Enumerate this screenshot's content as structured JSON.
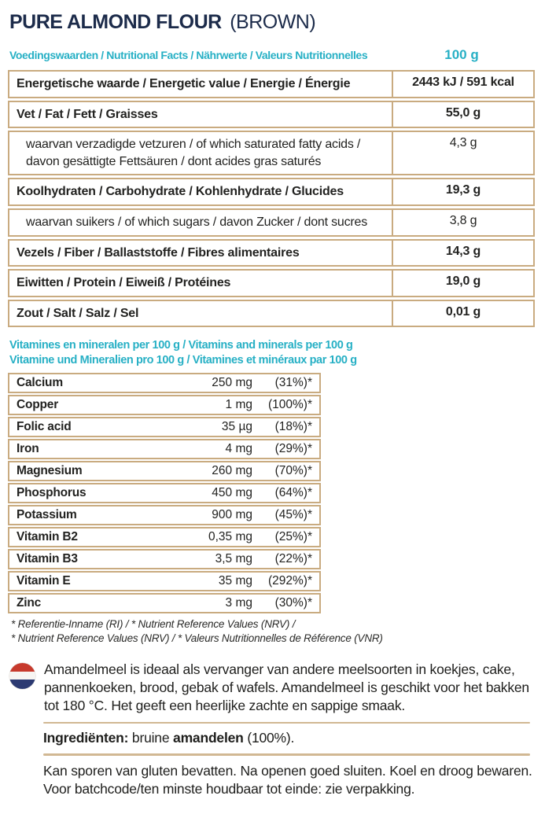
{
  "title": {
    "main": "PURE ALMOND FLOUR",
    "variant": "(BROWN)"
  },
  "facts_header": {
    "label": "Voedingswaarden / Nutritional Facts / Nährwerte / Valeurs Nutritionnelles",
    "amount": "100 g"
  },
  "nutrition_rows": [
    {
      "label": "Energetische waarde / Energetic value / Energie / Énergie",
      "value": "2443 kJ / 591 kcal",
      "bold": true,
      "sub": false
    },
    {
      "label": "Vet / Fat / Fett / Graisses",
      "value": "55,0 g",
      "bold": true,
      "sub": false
    },
    {
      "label": "waarvan verzadigde vetzuren / of which saturated fatty acids / davon gesättigte Fettsäuren / dont acides gras saturés",
      "value": "4,3 g",
      "bold": false,
      "sub": true
    },
    {
      "label": "Koolhydraten / Carbohydrate / Kohlenhydrate / Glucides",
      "value": "19,3 g",
      "bold": true,
      "sub": false
    },
    {
      "label": "waarvan suikers / of which sugars / davon Zucker / dont sucres",
      "value": "3,8 g",
      "bold": false,
      "sub": true
    },
    {
      "label": "Vezels / Fiber / Ballaststoffe / Fibres alimentaires",
      "value": "14,3 g",
      "bold": true,
      "sub": false
    },
    {
      "label": "Eiwitten / Protein / Eiweiß / Protéines",
      "value": "19,0 g",
      "bold": true,
      "sub": false
    },
    {
      "label": "Zout / Salt / Salz / Sel",
      "value": "0,01 g",
      "bold": true,
      "sub": false
    }
  ],
  "vitamins_header": {
    "line1": "Vitamines en mineralen per 100 g / Vitamins and minerals per 100 g",
    "line2": "Vitamine und Mineralien pro 100 g / Vitamines et minéraux par 100 g"
  },
  "vitamins": [
    {
      "name": "Calcium",
      "amount": "250 mg",
      "nrv": "(31%)*"
    },
    {
      "name": "Copper",
      "amount": "1 mg",
      "nrv": "(100%)*"
    },
    {
      "name": "Folic acid",
      "amount": "35 µg",
      "nrv": "(18%)*"
    },
    {
      "name": "Iron",
      "amount": "4 mg",
      "nrv": "(29%)*"
    },
    {
      "name": "Magnesium",
      "amount": "260 mg",
      "nrv": "(70%)*"
    },
    {
      "name": "Phosphorus",
      "amount": "450 mg",
      "nrv": "(64%)*"
    },
    {
      "name": "Potassium",
      "amount": "900 mg",
      "nrv": "(45%)*"
    },
    {
      "name": "Vitamin B2",
      "amount": "0,35 mg",
      "nrv": "(25%)*"
    },
    {
      "name": "Vitamin B3",
      "amount": "3,5 mg",
      "nrv": "(22%)*"
    },
    {
      "name": "Vitamin E",
      "amount": "35 mg",
      "nrv": "(292%)*"
    },
    {
      "name": "Zinc",
      "amount": "3 mg",
      "nrv": "(30%)*"
    }
  ],
  "footnotes": {
    "line1": "* Referentie-Inname (RI) / * Nutrient Reference Values (NRV) /",
    "line2": "* Nutrient Reference Values (NRV) / * Valeurs Nutritionnelles de Référence (VNR)"
  },
  "description": {
    "flag_icon": "netherlands-flag",
    "text": "Amandelmeel is ideaal als vervanger van andere meelsoorten in koekjes, cake, pannenkoeken, brood, gebak of wafels. Amandelmeel is geschikt voor het bakken tot 180 °C. Het geeft een heerlijke zachte en sappige smaak."
  },
  "ingredients": {
    "label": "Ingrediënten:",
    "word_regular1": " bruine ",
    "word_bold": "amandelen",
    "word_regular2": " (100%)."
  },
  "storage": "Kan sporen van gluten bevatten. Na openen goed sluiten. Koel en droog bewaren. Voor batchcode/ten minste houdbaar tot einde: zie verpakking.",
  "colors": {
    "navy": "#1c2b4a",
    "cyan": "#27b0c5",
    "tan_border": "#c9ab80",
    "text": "#1e1e1c",
    "flag_red": "#c73a2d",
    "flag_blue": "#2c3a72"
  }
}
